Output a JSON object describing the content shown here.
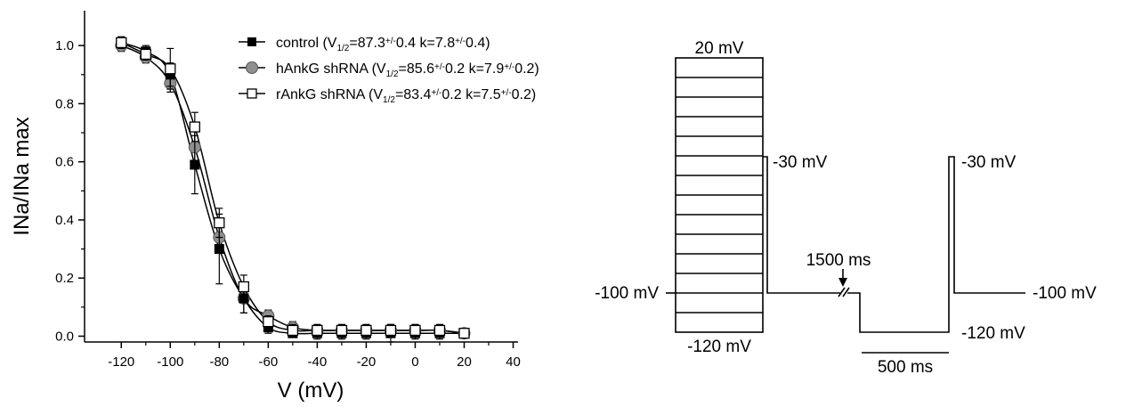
{
  "chart_data": {
    "type": "scatter",
    "xlabel": "V (mV)",
    "ylabel": "INa/INa max",
    "xlim": [
      -135,
      42
    ],
    "ylim": [
      -0.02,
      1.12
    ],
    "xticks": [
      "-120",
      "-100",
      "-80",
      "-60",
      "-40",
      "-20",
      "0",
      "20",
      "40"
    ],
    "yticks": [
      "0.0",
      "0.2",
      "0.4",
      "0.6",
      "0.8",
      "1.0"
    ],
    "grid": false,
    "legend_position": "top-right",
    "series": [
      {
        "name": "control",
        "legend_pre": "control (V",
        "legend_sub": "1/2",
        "legend_mid1": "=87.3",
        "legend_pm1": "+/-",
        "legend_mid2": "0.4 k=7.8",
        "legend_pm2": "+/-",
        "legend_end": "0.4)",
        "marker": "filled-square",
        "color": "#000000",
        "x": [
          -120,
          -110,
          -100,
          -90,
          -80,
          -70,
          -60,
          -50,
          -40,
          -30,
          -20,
          -10,
          0,
          10,
          20
        ],
        "y": [
          1.01,
          0.98,
          0.9,
          0.59,
          0.3,
          0.13,
          0.03,
          0.01,
          0.01,
          0.01,
          0.01,
          0.01,
          0.01,
          0.01,
          0.01
        ],
        "err": [
          0.02,
          0.02,
          0.04,
          0.1,
          0.12,
          0.05,
          0.02,
          0.01,
          0.02,
          0.02,
          0.02,
          0.03,
          0.02,
          0.02,
          0.01
        ]
      },
      {
        "name": "hAnkG shRNA",
        "legend_pre": "hAnkG shRNA (V",
        "legend_sub": "1/2",
        "legend_mid1": "=85.6",
        "legend_pm1": "+/-",
        "legend_mid2": "0.2 k=7.9",
        "legend_pm2": "+/-",
        "legend_end": "0.2)",
        "marker": "gray-circle",
        "color": "#8f8f8f",
        "x": [
          -120,
          -110,
          -100,
          -90,
          -80,
          -70,
          -60,
          -50,
          -40,
          -30,
          -20,
          -10,
          0,
          10,
          20
        ],
        "y": [
          1.0,
          0.96,
          0.87,
          0.65,
          0.34,
          0.13,
          0.07,
          0.03,
          0.02,
          0.02,
          0.02,
          0.02,
          0.02,
          0.02,
          0.01
        ],
        "err": [
          0.02,
          0.02,
          0.03,
          0.06,
          0.05,
          0.05,
          0.02,
          0.02,
          0.02,
          0.02,
          0.02,
          0.02,
          0.02,
          0.02,
          0.01
        ]
      },
      {
        "name": "rAnkG shRNA",
        "legend_pre": "rAnkG shRNA (V",
        "legend_sub": "1/2",
        "legend_mid1": "=83.4",
        "legend_pm1": "+/-",
        "legend_mid2": "0.2 k=7.5",
        "legend_pm2": "+/-",
        "legend_end": "0.2)",
        "marker": "open-square",
        "color": "#000000",
        "x": [
          -120,
          -110,
          -100,
          -90,
          -80,
          -70,
          -60,
          -50,
          -40,
          -30,
          -20,
          -10,
          0,
          10,
          20
        ],
        "y": [
          1.01,
          0.97,
          0.92,
          0.72,
          0.39,
          0.17,
          0.05,
          0.02,
          0.02,
          0.02,
          0.02,
          0.02,
          0.02,
          0.02,
          0.01
        ],
        "err": [
          0.02,
          0.02,
          0.07,
          0.05,
          0.05,
          0.04,
          0.02,
          0.02,
          0.02,
          0.02,
          0.02,
          0.02,
          0.02,
          0.02,
          0.01
        ]
      }
    ]
  },
  "protocol": {
    "top_label": "20 mV",
    "bottom_label": "-120 mV",
    "hold_label": "-100 mV",
    "test_label": "-30 mV",
    "prepulse_duration": "1500 ms",
    "test2_label": "-30 mV",
    "hyper_label": "-120 mV",
    "final_label": "-100 mV",
    "hyper_duration": "500 ms"
  }
}
